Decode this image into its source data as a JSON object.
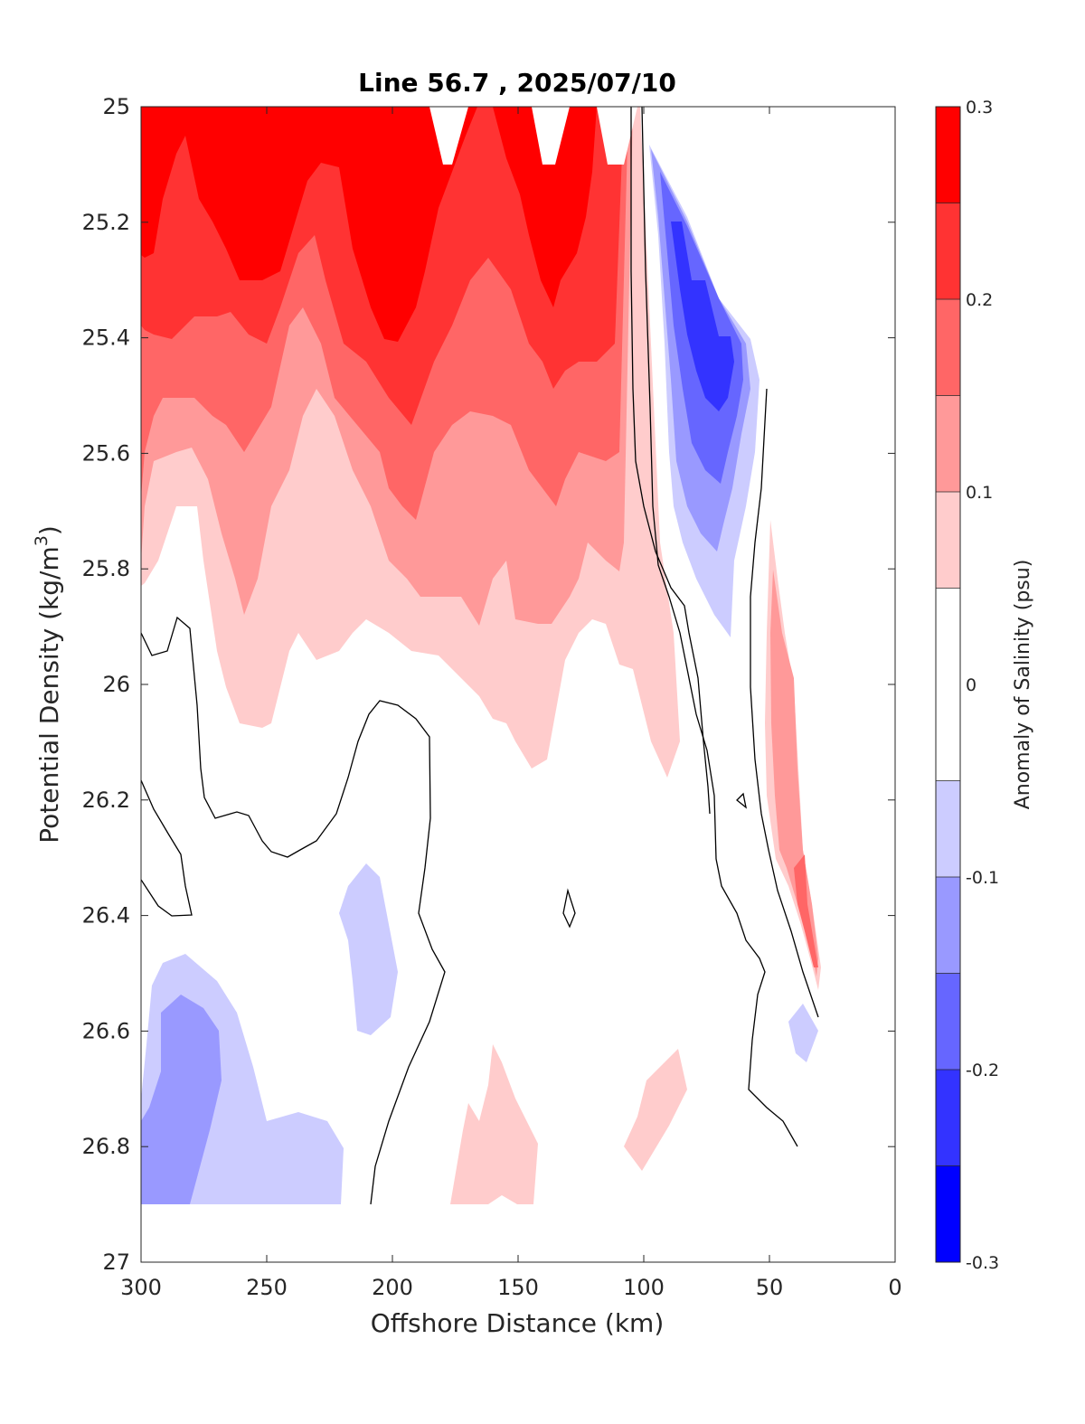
{
  "chart_data": {
    "type": "heatmap",
    "subtype": "filled-contour",
    "title": "Line 56.7 , 2025/07/10",
    "xlabel": "Offshore Distance (km)",
    "ylabel_main": "Potential Density (kg/m",
    "ylabel_sup": "3",
    "ylabel_end": ")",
    "xlim": [
      300,
      0
    ],
    "ylim": [
      27,
      25
    ],
    "x_reversed": true,
    "y_reversed": true,
    "xticks": [
      300,
      250,
      200,
      150,
      100,
      50,
      0
    ],
    "xtick_labels": [
      "300",
      "250",
      "200",
      "150",
      "100",
      "50",
      "0"
    ],
    "yticks": [
      25,
      25.2,
      25.4,
      25.6,
      25.8,
      26,
      26.2,
      26.4,
      26.6,
      26.8,
      27
    ],
    "ytick_labels": [
      "25",
      "25.2",
      "25.4",
      "25.6",
      "25.8",
      "26",
      "26.2",
      "26.4",
      "26.6",
      "26.8",
      "27"
    ],
    "colorbar": {
      "label": "Anomaly of Salinity (psu)",
      "range": [
        -0.3,
        0.3
      ],
      "tick_values": [
        0.3,
        0.2,
        0.1,
        0,
        -0.1,
        -0.2,
        -0.3
      ],
      "tick_labels": [
        "0.3",
        "0.2",
        "0.1",
        "0",
        "-0.1",
        "-0.2",
        "-0.3"
      ],
      "levels": [
        {
          "from": 0.25,
          "to": 0.3,
          "color": "#ff0000"
        },
        {
          "from": 0.2,
          "to": 0.25,
          "color": "#ff3333"
        },
        {
          "from": 0.15,
          "to": 0.2,
          "color": "#ff6666"
        },
        {
          "from": 0.1,
          "to": 0.15,
          "color": "#ff9999"
        },
        {
          "from": 0.05,
          "to": 0.1,
          "color": "#ffcccc"
        },
        {
          "from": -0.05,
          "to": 0.05,
          "color": "#ffffff"
        },
        {
          "from": -0.1,
          "to": -0.05,
          "color": "#ccccff"
        },
        {
          "from": -0.15,
          "to": -0.1,
          "color": "#9999ff"
        },
        {
          "from": -0.2,
          "to": -0.15,
          "color": "#6666ff"
        },
        {
          "from": -0.25,
          "to": -0.2,
          "color": "#3333ff"
        },
        {
          "from": -0.3,
          "to": -0.25,
          "color": "#0000ff"
        }
      ]
    },
    "contour_lines": "zero-anomaly contours drawn as thin black lines",
    "data_extent": {
      "x": [
        30,
        300
      ],
      "y": [
        25,
        26.9
      ]
    }
  }
}
